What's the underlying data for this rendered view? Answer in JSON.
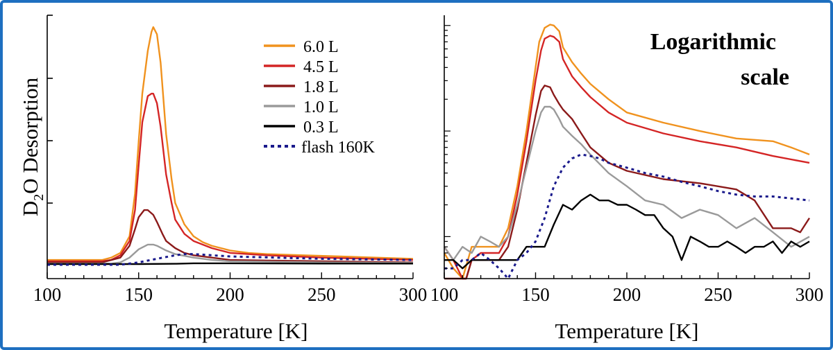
{
  "frame_color": "#1e6fc0",
  "chart_data": [
    {
      "type": "line",
      "xlabel": "Temperature [K]",
      "ylabel": "D2O Desorption",
      "ylabel_main": "D",
      "ylabel_sub": "2",
      "ylabel_rest": "O Desorption",
      "xlim": [
        100,
        300
      ],
      "xticks": [
        100,
        150,
        200,
        250,
        300
      ],
      "ylim": [
        0,
        1.05
      ],
      "yscale": "linear",
      "legend": {
        "placement": "top-right"
      },
      "series": [
        {
          "name": "6.0 L",
          "color": "#f0921e",
          "dash": "solid",
          "x": [
            100,
            130,
            135,
            140,
            145,
            148,
            150,
            152,
            155,
            157,
            158,
            160,
            162,
            165,
            168,
            170,
            175,
            180,
            185,
            190,
            200,
            210,
            220,
            240,
            260,
            280,
            300
          ],
          "y": [
            0.02,
            0.02,
            0.03,
            0.05,
            0.12,
            0.3,
            0.52,
            0.72,
            0.9,
            0.98,
            1.0,
            0.97,
            0.85,
            0.55,
            0.36,
            0.26,
            0.17,
            0.12,
            0.095,
            0.08,
            0.06,
            0.05,
            0.045,
            0.04,
            0.035,
            0.03,
            0.025
          ]
        },
        {
          "name": "4.5 L",
          "color": "#d42525",
          "dash": "solid",
          "x": [
            100,
            130,
            135,
            140,
            145,
            148,
            150,
            152,
            155,
            157,
            158,
            160,
            162,
            165,
            168,
            170,
            175,
            180,
            190,
            200,
            220,
            250,
            300
          ],
          "y": [
            0.015,
            0.015,
            0.02,
            0.04,
            0.1,
            0.23,
            0.42,
            0.6,
            0.71,
            0.72,
            0.72,
            0.68,
            0.58,
            0.38,
            0.26,
            0.19,
            0.13,
            0.1,
            0.07,
            0.05,
            0.04,
            0.03,
            0.02
          ]
        },
        {
          "name": "1.8 L",
          "color": "#8b1a1a",
          "dash": "solid",
          "x": [
            100,
            130,
            140,
            145,
            148,
            150,
            153,
            155,
            158,
            160,
            163,
            165,
            170,
            175,
            180,
            190,
            200,
            250,
            300
          ],
          "y": [
            0.01,
            0.01,
            0.03,
            0.08,
            0.15,
            0.2,
            0.23,
            0.23,
            0.21,
            0.18,
            0.13,
            0.1,
            0.07,
            0.05,
            0.04,
            0.03,
            0.02,
            0.015,
            0.01
          ]
        },
        {
          "name": "1.0 L",
          "color": "#9a9a9a",
          "dash": "solid",
          "x": [
            100,
            135,
            140,
            145,
            150,
            155,
            158,
            160,
            165,
            170,
            180,
            190,
            200,
            250,
            300
          ],
          "y": [
            0.005,
            0.005,
            0.01,
            0.03,
            0.065,
            0.085,
            0.085,
            0.08,
            0.06,
            0.045,
            0.03,
            0.02,
            0.015,
            0.01,
            0.008
          ]
        },
        {
          "name": "0.3 L",
          "color": "#000000",
          "dash": "solid",
          "x": [
            100,
            150,
            170,
            180,
            200,
            250,
            300
          ],
          "y": [
            0.003,
            0.003,
            0.004,
            0.006,
            0.006,
            0.005,
            0.005
          ]
        },
        {
          "name": "flash 160K",
          "color": "#1a1a8c",
          "dash": "dotted",
          "x": [
            100,
            140,
            150,
            160,
            170,
            175,
            180,
            190,
            200,
            250,
            300
          ],
          "y": [
            0.0,
            0.0,
            0.01,
            0.025,
            0.04,
            0.045,
            0.045,
            0.04,
            0.035,
            0.025,
            0.02
          ]
        }
      ]
    },
    {
      "type": "line",
      "xlabel": "Temperature [K]",
      "xlim": [
        100,
        300
      ],
      "xticks": [
        100,
        150,
        200,
        250,
        300
      ],
      "yscale": "log",
      "ylim": [
        0.004,
        1.25
      ],
      "annotation": "Logarithmic\nscale",
      "annotation_line1": "Logarithmic",
      "annotation_line2": "scale",
      "series": [
        {
          "name": "6.0 L",
          "color": "#f0921e",
          "dash": "solid",
          "x": [
            100,
            105,
            110,
            115,
            120,
            125,
            130,
            135,
            140,
            145,
            150,
            152,
            155,
            158,
            160,
            163,
            165,
            170,
            175,
            180,
            190,
            200,
            220,
            240,
            260,
            280,
            290,
            300
          ],
          "y": [
            0.007,
            0.005,
            0.004,
            0.008,
            0.008,
            0.008,
            0.008,
            0.012,
            0.03,
            0.1,
            0.4,
            0.7,
            0.95,
            1.02,
            1.0,
            0.88,
            0.62,
            0.45,
            0.35,
            0.28,
            0.2,
            0.15,
            0.12,
            0.1,
            0.085,
            0.08,
            0.07,
            0.06
          ]
        },
        {
          "name": "4.5 L",
          "color": "#d42525",
          "dash": "solid",
          "x": [
            100,
            105,
            110,
            112,
            115,
            120,
            125,
            130,
            135,
            140,
            145,
            150,
            153,
            155,
            158,
            160,
            163,
            165,
            170,
            175,
            180,
            190,
            200,
            220,
            240,
            260,
            280,
            300
          ],
          "y": [
            0.008,
            0.006,
            0.004,
            0.004,
            0.006,
            0.007,
            0.007,
            0.007,
            0.01,
            0.025,
            0.08,
            0.3,
            0.58,
            0.75,
            0.8,
            0.78,
            0.7,
            0.48,
            0.33,
            0.26,
            0.21,
            0.15,
            0.12,
            0.095,
            0.08,
            0.07,
            0.058,
            0.05
          ]
        },
        {
          "name": "1.8 L",
          "color": "#8b1a1a",
          "dash": "solid",
          "x": [
            100,
            105,
            110,
            112,
            115,
            120,
            125,
            130,
            135,
            140,
            145,
            150,
            153,
            155,
            158,
            160,
            163,
            165,
            170,
            175,
            180,
            190,
            200,
            220,
            240,
            260,
            270,
            280,
            290,
            295,
            300
          ],
          "y": [
            0.004,
            0.004,
            0.004,
            0.004,
            0.006,
            0.006,
            0.006,
            0.006,
            0.008,
            0.018,
            0.05,
            0.14,
            0.24,
            0.27,
            0.26,
            0.22,
            0.18,
            0.16,
            0.13,
            0.095,
            0.07,
            0.05,
            0.042,
            0.035,
            0.032,
            0.028,
            0.022,
            0.012,
            0.012,
            0.011,
            0.015
          ]
        },
        {
          "name": "1.0 L",
          "color": "#9a9a9a",
          "dash": "solid",
          "x": [
            100,
            105,
            110,
            115,
            120,
            125,
            130,
            135,
            140,
            145,
            150,
            153,
            155,
            158,
            160,
            163,
            165,
            170,
            175,
            180,
            190,
            200,
            210,
            220,
            230,
            240,
            250,
            260,
            270,
            280,
            290,
            300
          ],
          "y": [
            0.008,
            0.006,
            0.008,
            0.007,
            0.01,
            0.009,
            0.008,
            0.01,
            0.02,
            0.045,
            0.1,
            0.15,
            0.17,
            0.17,
            0.16,
            0.13,
            0.11,
            0.09,
            0.075,
            0.06,
            0.04,
            0.03,
            0.022,
            0.02,
            0.015,
            0.018,
            0.016,
            0.012,
            0.015,
            0.011,
            0.008,
            0.01
          ]
        },
        {
          "name": "0.3 L",
          "color": "#000000",
          "dash": "solid",
          "x": [
            100,
            105,
            110,
            115,
            120,
            125,
            130,
            135,
            140,
            145,
            150,
            155,
            160,
            165,
            170,
            175,
            180,
            185,
            190,
            195,
            200,
            205,
            210,
            215,
            220,
            225,
            230,
            235,
            240,
            245,
            250,
            255,
            260,
            265,
            270,
            275,
            280,
            285,
            290,
            295,
            300
          ],
          "y": [
            0.006,
            0.006,
            0.005,
            0.006,
            0.006,
            0.006,
            0.006,
            0.006,
            0.006,
            0.008,
            0.008,
            0.008,
            0.013,
            0.02,
            0.018,
            0.022,
            0.025,
            0.022,
            0.022,
            0.02,
            0.02,
            0.018,
            0.016,
            0.016,
            0.012,
            0.01,
            0.006,
            0.01,
            0.009,
            0.008,
            0.008,
            0.009,
            0.008,
            0.007,
            0.008,
            0.008,
            0.009,
            0.007,
            0.009,
            0.008,
            0.009
          ]
        },
        {
          "name": "flash 160K",
          "color": "#1a1a8c",
          "dash": "dotted",
          "x": [
            100,
            105,
            110,
            115,
            120,
            125,
            130,
            135,
            140,
            145,
            150,
            155,
            160,
            165,
            170,
            175,
            180,
            185,
            190,
            200,
            210,
            220,
            230,
            240,
            250,
            260,
            270,
            280,
            290,
            300
          ],
          "y": [
            0.005,
            0.005,
            0.006,
            0.006,
            0.007,
            0.006,
            0.005,
            0.004,
            0.006,
            0.007,
            0.009,
            0.015,
            0.03,
            0.045,
            0.055,
            0.06,
            0.058,
            0.055,
            0.05,
            0.045,
            0.04,
            0.037,
            0.033,
            0.03,
            0.027,
            0.025,
            0.024,
            0.024,
            0.023,
            0.022
          ]
        }
      ]
    }
  ]
}
